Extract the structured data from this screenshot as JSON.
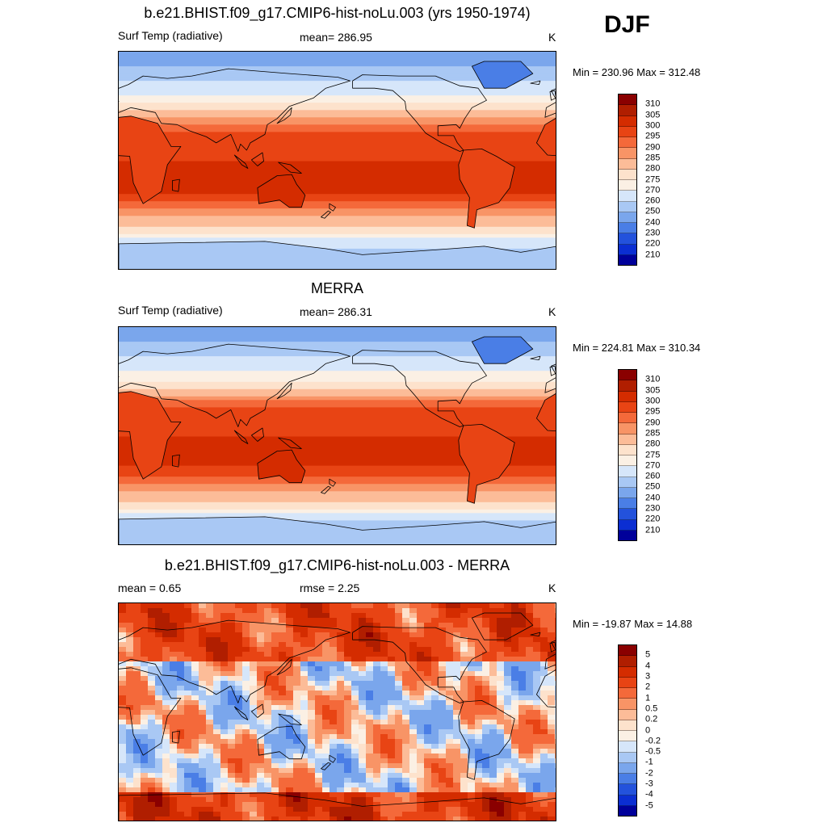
{
  "season": "DJF",
  "panels": [
    {
      "title": "b.e21.BHIST.f09_g17.CMIP6-hist-noLu.003 (yrs 1950-1974)",
      "left_label": "Surf Temp (radiative)",
      "center_label": "mean= 286.95",
      "units": "K",
      "minmax": "Min = 230.96 Max = 312.48",
      "kind": "abs"
    },
    {
      "title": "MERRA",
      "left_label": "Surf Temp (radiative)",
      "center_label": "mean= 286.31",
      "units": "K",
      "minmax": "Min = 224.81 Max = 310.34",
      "kind": "abs"
    },
    {
      "title": "b.e21.BHIST.f09_g17.CMIP6-hist-noLu.003 - MERRA",
      "left_label": "mean =   0.65",
      "center_label": "rmse =   2.25",
      "units": "K",
      "minmax": "Min = -19.87 Max =  14.88",
      "kind": "diff"
    }
  ],
  "colorbars": {
    "abs": {
      "ticks": [
        "310",
        "305",
        "300",
        "295",
        "290",
        "285",
        "280",
        "275",
        "270",
        "260",
        "250",
        "240",
        "230",
        "220",
        "210"
      ],
      "colors": [
        "#8a0000",
        "#b01e00",
        "#d42c00",
        "#e84414",
        "#f4693a",
        "#f89466",
        "#fcbc98",
        "#fde2cc",
        "#fbf0e4",
        "#d6e6fa",
        "#a9c8f4",
        "#7aa6ec",
        "#4a7ee6",
        "#2352dc",
        "#0b2ed2",
        "#00009a"
      ]
    },
    "diff": {
      "ticks": [
        "5",
        "4",
        "3",
        "2",
        "1",
        "0.5",
        "0.2",
        "0",
        "-0.2",
        "-0.5",
        "-1",
        "-2",
        "-3",
        "-4",
        "-5"
      ],
      "colors": [
        "#8a0000",
        "#b01e00",
        "#d42c00",
        "#e84414",
        "#f4693a",
        "#f89466",
        "#fcbc98",
        "#fde2cc",
        "#fbf0e4",
        "#d6e6fa",
        "#a9c8f4",
        "#7aa6ec",
        "#4a7ee6",
        "#2352dc",
        "#0b2ed2",
        "#00009a"
      ]
    }
  }
}
